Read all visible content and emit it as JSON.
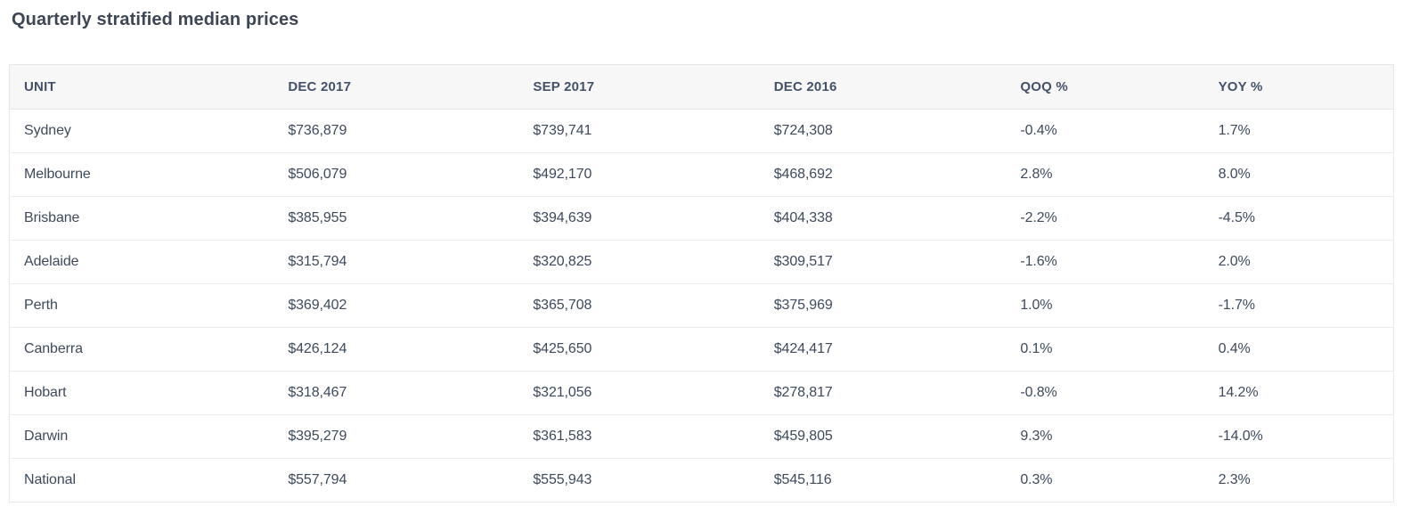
{
  "colors": {
    "positive": "#27a327",
    "negative": "#e03a2e",
    "title_text": "#3d4654",
    "header_text": "#44516a",
    "body_text": "#3d4a5c",
    "header_bg": "#f7f7f7",
    "border": "#e7e7e7"
  },
  "chart_data": {
    "type": "table",
    "title": "Quarterly stratified median prices",
    "columns": [
      "UNIT",
      "DEC 2017",
      "SEP 2017",
      "DEC 2016",
      "QOQ %",
      "YOY %"
    ],
    "rows": [
      {
        "unit": "Sydney",
        "dec_2017": "$736,879",
        "sep_2017": "$739,741",
        "dec_2016": "$724,308",
        "qoq_pct": "-0.4%",
        "qoq_trend": "negative",
        "yoy_pct": "1.7%",
        "yoy_trend": "positive"
      },
      {
        "unit": "Melbourne",
        "dec_2017": "$506,079",
        "sep_2017": "$492,170",
        "dec_2016": "$468,692",
        "qoq_pct": "2.8%",
        "qoq_trend": "positive",
        "yoy_pct": "8.0%",
        "yoy_trend": "positive"
      },
      {
        "unit": "Brisbane",
        "dec_2017": "$385,955",
        "sep_2017": "$394,639",
        "dec_2016": "$404,338",
        "qoq_pct": "-2.2%",
        "qoq_trend": "negative",
        "yoy_pct": "-4.5%",
        "yoy_trend": "negative"
      },
      {
        "unit": "Adelaide",
        "dec_2017": "$315,794",
        "sep_2017": "$320,825",
        "dec_2016": "$309,517",
        "qoq_pct": "-1.6%",
        "qoq_trend": "negative",
        "yoy_pct": "2.0%",
        "yoy_trend": "positive"
      },
      {
        "unit": "Perth",
        "dec_2017": "$369,402",
        "sep_2017": "$365,708",
        "dec_2016": "$375,969",
        "qoq_pct": "1.0%",
        "qoq_trend": "positive",
        "yoy_pct": "-1.7%",
        "yoy_trend": "negative"
      },
      {
        "unit": "Canberra",
        "dec_2017": "$426,124",
        "sep_2017": "$425,650",
        "dec_2016": "$424,417",
        "qoq_pct": "0.1%",
        "qoq_trend": "positive",
        "yoy_pct": "0.4%",
        "yoy_trend": "positive"
      },
      {
        "unit": "Hobart",
        "dec_2017": "$318,467",
        "sep_2017": "$321,056",
        "dec_2016": "$278,817",
        "qoq_pct": "-0.8%",
        "qoq_trend": "negative",
        "yoy_pct": "14.2%",
        "yoy_trend": "positive"
      },
      {
        "unit": "Darwin",
        "dec_2017": "$395,279",
        "sep_2017": "$361,583",
        "dec_2016": "$459,805",
        "qoq_pct": "9.3%",
        "qoq_trend": "positive",
        "yoy_pct": "-14.0%",
        "yoy_trend": "negative"
      },
      {
        "unit": "National",
        "dec_2017": "$557,794",
        "sep_2017": "$555,943",
        "dec_2016": "$545,116",
        "qoq_pct": "0.3%",
        "qoq_trend": "positive",
        "yoy_pct": "2.3%",
        "yoy_trend": "positive"
      }
    ]
  }
}
